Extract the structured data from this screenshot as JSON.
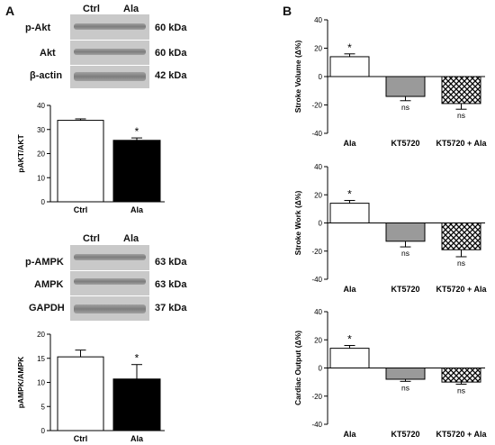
{
  "panels": {
    "a": "A",
    "b": "B"
  },
  "blot_top": {
    "lanes": [
      "Ctrl",
      "Ala"
    ],
    "rows": [
      {
        "label": "p-Akt",
        "kda": "60 kDa"
      },
      {
        "label": "Akt",
        "kda": "60 kDa"
      },
      {
        "label": "β-actin",
        "kda": "42 kDa"
      }
    ]
  },
  "blot_bottom": {
    "lanes": [
      "Ctrl",
      "Ala"
    ],
    "rows": [
      {
        "label": "p-AMPK",
        "kda": "63 kDa"
      },
      {
        "label": "AMPK",
        "kda": "63 kDa"
      },
      {
        "label": "GAPDH",
        "kda": "37 kDa"
      }
    ]
  },
  "chart_data": [
    {
      "type": "bar",
      "id": "pakt",
      "categories": [
        "Ctrl",
        "Ala"
      ],
      "values": [
        33.8,
        25.5
      ],
      "errors": [
        0.6,
        1.0
      ],
      "ylim": [
        0,
        40
      ],
      "ticks": [
        0,
        10,
        20,
        30,
        40
      ],
      "ylabel": "pAKT/AKT",
      "annotations": [
        "",
        "*"
      ],
      "fills": [
        "white",
        "black"
      ]
    },
    {
      "type": "bar",
      "id": "pampk",
      "categories": [
        "Ctrl",
        "Ala"
      ],
      "values": [
        15.3,
        10.7
      ],
      "errors": [
        1.4,
        3.0
      ],
      "ylim": [
        0,
        20
      ],
      "ticks": [
        0,
        5,
        10,
        15,
        20
      ],
      "ylabel": "pAMPK/AMPK",
      "annotations": [
        "",
        "*"
      ],
      "fills": [
        "white",
        "black"
      ]
    },
    {
      "type": "bar",
      "id": "sv",
      "categories": [
        "Ala",
        "KT5720",
        "KT5720 + Ala"
      ],
      "values": [
        14,
        -14,
        -19
      ],
      "errors": [
        2,
        3,
        4
      ],
      "ylim": [
        -40,
        40
      ],
      "ticks": [
        -40,
        -20,
        0,
        20,
        40
      ],
      "ylabel": "Stroke Volume (Δ%)",
      "annotations": [
        "*",
        "ns",
        "ns"
      ],
      "fills": [
        "white",
        "gray",
        "hatch"
      ]
    },
    {
      "type": "bar",
      "id": "sw",
      "categories": [
        "Ala",
        "KT5720",
        "KT5720 + Ala"
      ],
      "values": [
        14,
        -13,
        -19
      ],
      "errors": [
        2,
        4,
        5
      ],
      "ylim": [
        -40,
        40
      ],
      "ticks": [
        -40,
        -20,
        0,
        20,
        40
      ],
      "ylabel": "Stroke Work (Δ%)",
      "annotations": [
        "*",
        "ns",
        "ns"
      ],
      "fills": [
        "white",
        "gray",
        "hatch"
      ]
    },
    {
      "type": "bar",
      "id": "co",
      "categories": [
        "Ala",
        "KT5720",
        "KT5720 + Ala"
      ],
      "values": [
        14,
        -8,
        -10
      ],
      "errors": [
        2,
        1.5,
        1.5
      ],
      "ylim": [
        -40,
        40
      ],
      "ticks": [
        -40,
        -20,
        0,
        20,
        40
      ],
      "ylabel": "Cardiac Output (Δ%)",
      "annotations": [
        "*",
        "ns",
        "ns"
      ],
      "fills": [
        "white",
        "gray",
        "hatch"
      ]
    }
  ]
}
